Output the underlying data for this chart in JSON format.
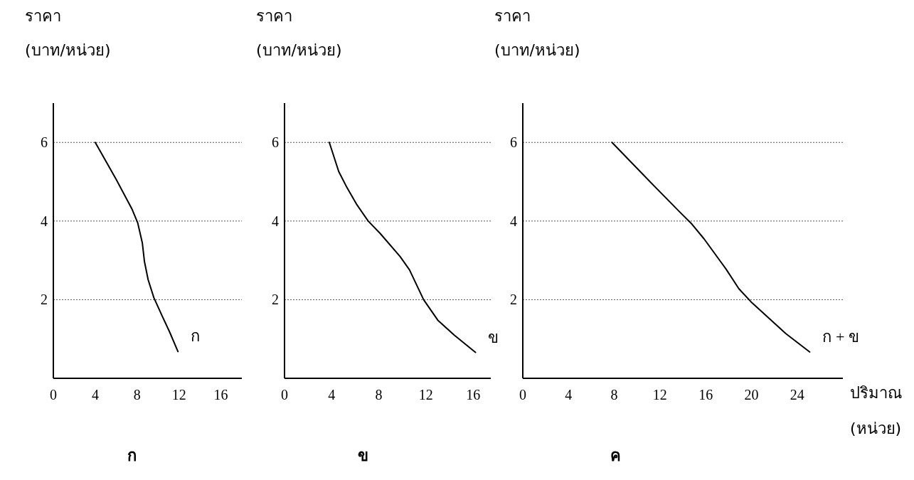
{
  "chart_data": [
    {
      "type": "line",
      "title": "ก",
      "ylabel": "ราคา\n(บาท/หน่วย)",
      "xlim": [
        0,
        18
      ],
      "ylim": [
        0,
        7
      ],
      "xticks": [
        0,
        4,
        8,
        12,
        16
      ],
      "yticks": [
        2,
        4,
        6
      ],
      "grid": "y",
      "series": [
        {
          "name": "ก",
          "color": "#000000",
          "x": [
            4.0,
            6.0,
            7.5,
            8.05,
            8.5,
            8.7,
            9.05,
            9.6,
            10.4,
            11.1,
            11.9
          ],
          "values": [
            6.0,
            5.06,
            4.31,
            3.96,
            3.44,
            2.97,
            2.51,
            2.05,
            1.58,
            1.18,
            0.68
          ]
        }
      ]
    },
    {
      "type": "line",
      "title": "ข",
      "ylabel": "ราคา\n(บาท/หน่วย)",
      "xlim": [
        0,
        17.5
      ],
      "ylim": [
        0,
        7
      ],
      "xticks": [
        0,
        4,
        8,
        12,
        16
      ],
      "yticks": [
        2,
        4,
        6
      ],
      "grid": "y",
      "series": [
        {
          "name": "ข",
          "color": "#000000",
          "x": [
            3.8,
            4.6,
            5.3,
            6.15,
            7.1,
            8.1,
            9.8,
            10.6,
            11.8,
            13.0,
            14.4,
            16.2
          ],
          "values": [
            6.0,
            5.26,
            4.85,
            4.41,
            4.0,
            3.69,
            3.1,
            2.76,
            2.0,
            1.48,
            1.1,
            0.66
          ]
        }
      ]
    },
    {
      "type": "line",
      "title": "ค",
      "ylabel": "ราคา\n(บาท/หน่วย)",
      "xlabel": "ปริมาณ\n(หน่วย)",
      "xlim": [
        0,
        28
      ],
      "ylim": [
        0,
        7
      ],
      "xticks": [
        0,
        4,
        8,
        12,
        16,
        20,
        24
      ],
      "yticks": [
        2,
        4,
        6
      ],
      "grid": "y",
      "series": [
        {
          "name": "ก + ข",
          "color": "#000000",
          "x": [
            7.8,
            11.5,
            13.7,
            14.8,
            15.85,
            17.8,
            18.9,
            20.05,
            23.0,
            25.1
          ],
          "values": [
            6.0,
            4.89,
            4.24,
            3.92,
            3.55,
            2.77,
            2.28,
            1.92,
            1.14,
            0.67
          ]
        }
      ]
    }
  ]
}
